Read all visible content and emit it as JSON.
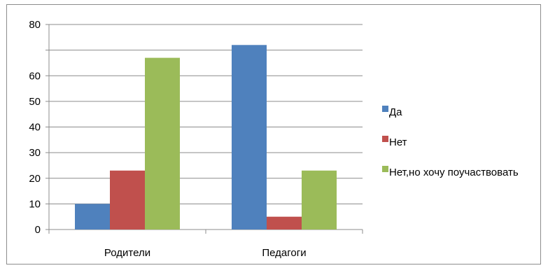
{
  "chart_data": {
    "type": "bar",
    "categories": [
      "Родители",
      "Педагоги"
    ],
    "series": [
      {
        "name": "Да",
        "values": [
          10,
          72
        ],
        "color": "#4f81bd"
      },
      {
        "name": "Нет",
        "values": [
          23,
          5
        ],
        "color": "#c0504d"
      },
      {
        "name": "Нет,но хочу поучаствовать",
        "values": [
          67,
          23
        ],
        "color": "#9bbb59"
      }
    ],
    "y_tick_labels": [
      "0",
      "10",
      "20",
      "30",
      "40",
      "50",
      "60",
      "",
      "80"
    ],
    "ylim": [
      0,
      80
    ],
    "grid": true,
    "legend_position": "right",
    "title": "",
    "xlabel": "",
    "ylabel": ""
  }
}
